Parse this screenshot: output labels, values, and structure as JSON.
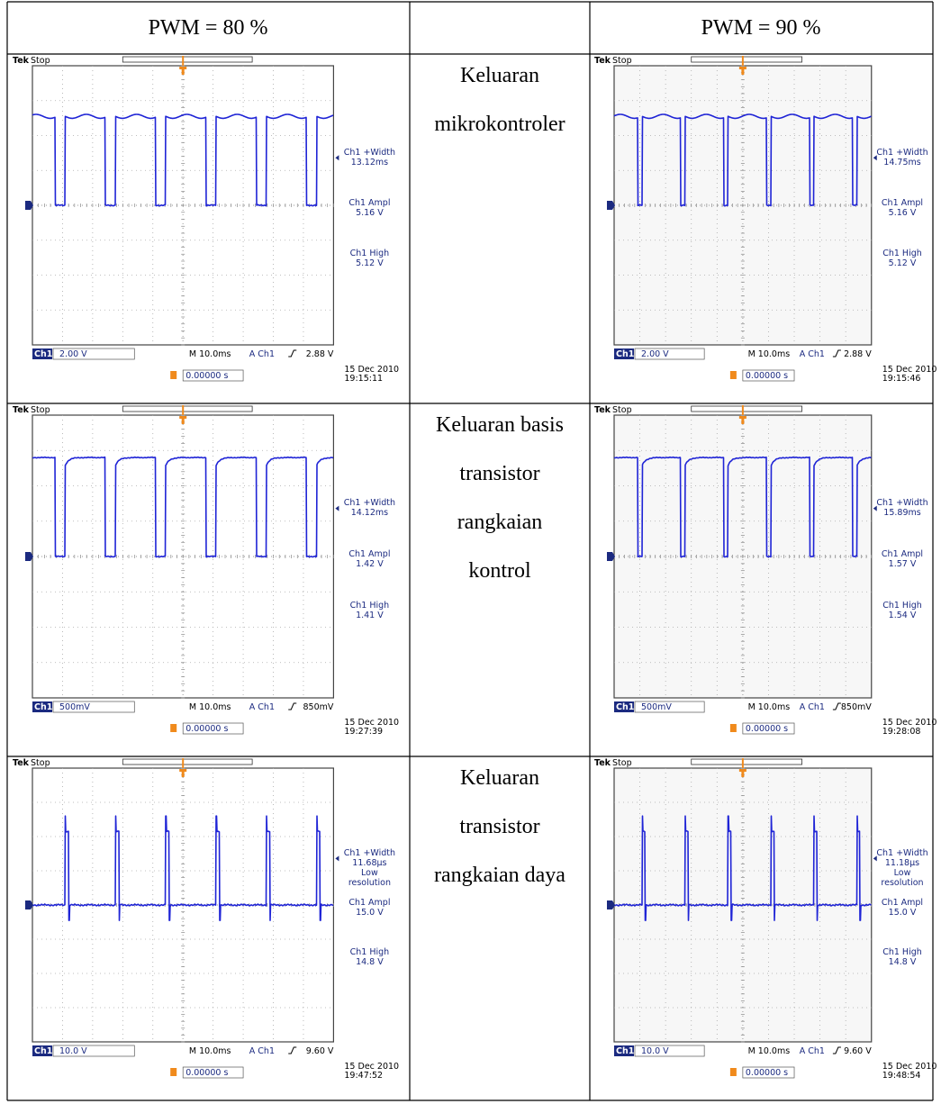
{
  "header": {
    "left": "PWM = 80 %",
    "right": "PWM = 90 %"
  },
  "rows": [
    {
      "label": [
        "Keluaran",
        "mikrokontroler"
      ],
      "left": {
        "brand": "Tek",
        "state": "Stop",
        "channel": "Ch1",
        "scale": "2.00 V",
        "timebase": "M 10.0ms",
        "trigger": "A  Ch1",
        "level": "2.88 V",
        "position": "0.00000 s",
        "date": "15 Dec 2010",
        "time": "19:15:11",
        "measurements": [
          [
            "Ch1 +Width",
            "13.12ms"
          ],
          [
            "Ch1 Ampl",
            "5.16 V"
          ],
          [
            "Ch1 High",
            "5.12 V"
          ]
        ]
      },
      "right": {
        "brand": "Tek",
        "state": "Stop",
        "channel": "Ch1",
        "scale": "2.00 V",
        "timebase": "M 10.0ms",
        "trigger": "A  Ch1",
        "level": "2.88 V",
        "position": "0.00000 s",
        "date": "15 Dec 2010",
        "time": "19:15:46",
        "measurements": [
          [
            "Ch1 +Width",
            "14.75ms"
          ],
          [
            "Ch1 Ampl",
            "5.16 V"
          ],
          [
            "Ch1 High",
            "5.12 V"
          ]
        ]
      }
    },
    {
      "label": [
        "Keluaran basis",
        "transistor",
        "rangkaian",
        "kontrol"
      ],
      "left": {
        "brand": "Tek",
        "state": "Stop",
        "channel": "Ch1",
        "scale": "500mV",
        "timebase": "M 10.0ms",
        "trigger": "A  Ch1",
        "level": "850mV",
        "position": "0.00000 s",
        "date": "15 Dec 2010",
        "time": "19:27:39",
        "measurements": [
          [
            "Ch1 +Width",
            "14.12ms"
          ],
          [
            "Ch1 Ampl",
            "1.42 V"
          ],
          [
            "Ch1 High",
            "1.41 V"
          ]
        ]
      },
      "right": {
        "brand": "Tek",
        "state": "Stop",
        "channel": "Ch1",
        "scale": "500mV",
        "timebase": "M 10.0ms",
        "trigger": "A  Ch1",
        "level": "850mV",
        "position": "0.00000 s",
        "date": "15 Dec 2010",
        "time": "19:28:08",
        "measurements": [
          [
            "Ch1 +Width",
            "15.89ms"
          ],
          [
            "Ch1 Ampl",
            "1.57 V"
          ],
          [
            "Ch1 High",
            "1.54 V"
          ]
        ]
      }
    },
    {
      "label": [
        "Keluaran",
        "transistor",
        "rangkaian daya"
      ],
      "left": {
        "brand": "Tek",
        "state": "Stop",
        "channel": "Ch1",
        "scale": "10.0 V",
        "timebase": "M 10.0ms",
        "trigger": "A  Ch1",
        "level": "9.60 V",
        "position": "0.00000 s",
        "date": "15 Dec 2010",
        "time": "19:47:52",
        "measurements": [
          [
            "Ch1 +Width",
            "11.68µs",
            "Low",
            "resolution"
          ],
          [
            "Ch1 Ampl",
            "15.0 V"
          ],
          [
            "Ch1 High",
            "14.8 V"
          ]
        ]
      },
      "right": {
        "brand": "Tek",
        "state": "Stop",
        "channel": "Ch1",
        "scale": "10.0 V",
        "timebase": "M 10.0ms",
        "trigger": "A  Ch1",
        "level": "9.60 V",
        "position": "0.00000 s",
        "date": "15 Dec 2010",
        "time": "19:48:54",
        "measurements": [
          [
            "Ch1 +Width",
            "11.18µs",
            "Low",
            "resolution"
          ],
          [
            "Ch1 Ampl",
            "15.0 V"
          ],
          [
            "Ch1 High",
            "14.8 V"
          ]
        ]
      }
    }
  ]
}
